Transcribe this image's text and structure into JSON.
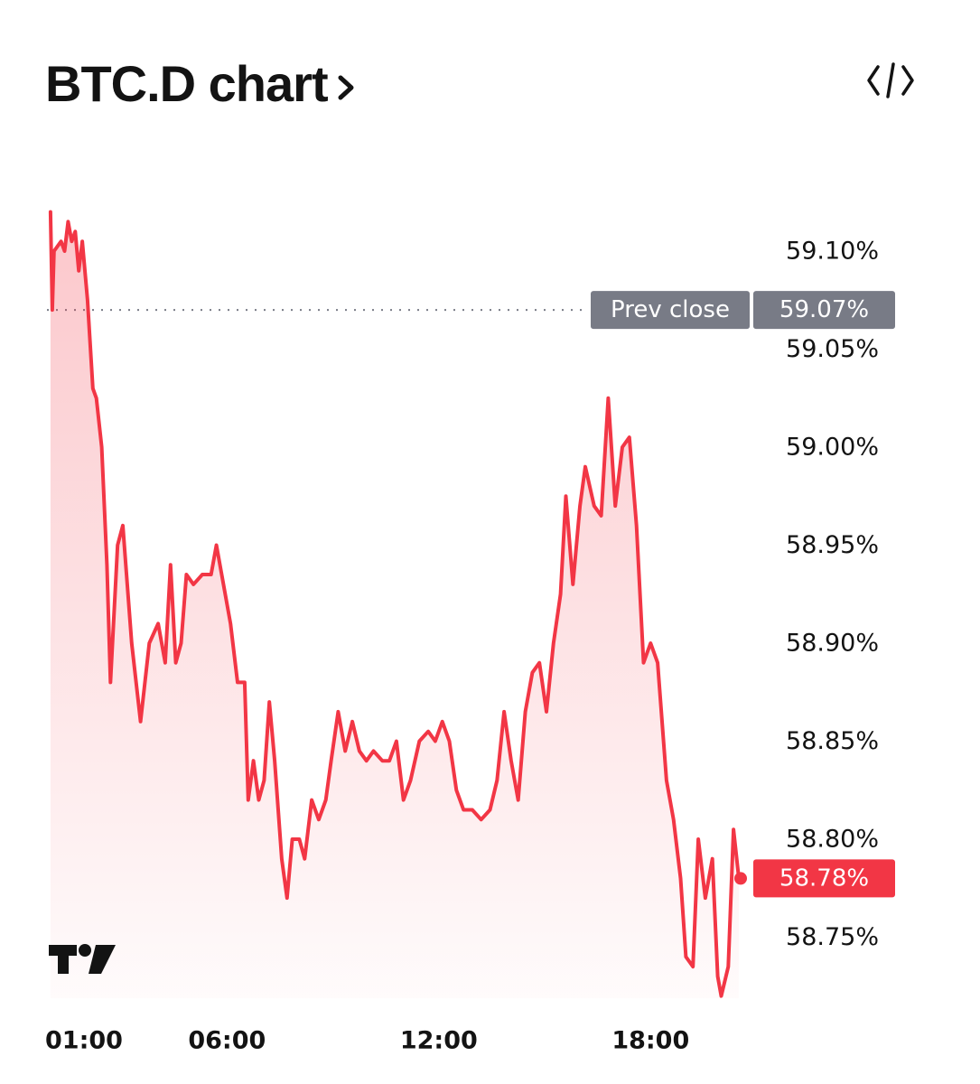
{
  "header": {
    "title": "BTC.D chart"
  },
  "colors": {
    "line": "#f23645",
    "tag_grey": "#787b86",
    "text": "#131313"
  },
  "chart_data": {
    "type": "area",
    "title": "BTC.D chart",
    "xlabel": "",
    "ylabel": "",
    "unit": "%",
    "x_ticks": [
      {
        "label": "01:00",
        "x": 1.0
      },
      {
        "label": "06:00",
        "x": 6.0
      },
      {
        "label": "12:00",
        "x": 12.0
      },
      {
        "label": "18:00",
        "x": 18.0
      }
    ],
    "y_ticks": [
      "58.75%",
      "58.80%",
      "58.85%",
      "58.90%",
      "58.95%",
      "59.00%",
      "59.05%",
      "59.10%"
    ],
    "y_tick_values": [
      58.75,
      58.8,
      58.85,
      58.9,
      58.95,
      59.0,
      59.05,
      59.1
    ],
    "ylim": [
      58.72,
      59.13
    ],
    "xlim": [
      0.9,
      20.2
    ],
    "prev_close": {
      "label": "Prev close",
      "value": 59.07,
      "value_label": "59.07%"
    },
    "last": {
      "value": 58.78,
      "value_label": "58.78%"
    },
    "series": [
      {
        "points": [
          [
            1.0,
            59.12
          ],
          [
            1.05,
            59.07
          ],
          [
            1.1,
            59.1
          ],
          [
            1.3,
            59.105
          ],
          [
            1.4,
            59.1
          ],
          [
            1.5,
            59.115
          ],
          [
            1.6,
            59.105
          ],
          [
            1.7,
            59.11
          ],
          [
            1.8,
            59.09
          ],
          [
            1.9,
            59.105
          ],
          [
            2.05,
            59.075
          ],
          [
            2.2,
            59.03
          ],
          [
            2.3,
            59.025
          ],
          [
            2.45,
            59.0
          ],
          [
            2.6,
            58.94
          ],
          [
            2.7,
            58.88
          ],
          [
            2.9,
            58.95
          ],
          [
            3.05,
            58.96
          ],
          [
            3.3,
            58.9
          ],
          [
            3.55,
            58.86
          ],
          [
            3.8,
            58.9
          ],
          [
            4.05,
            58.91
          ],
          [
            4.25,
            58.89
          ],
          [
            4.4,
            58.94
          ],
          [
            4.55,
            58.89
          ],
          [
            4.7,
            58.9
          ],
          [
            4.85,
            58.935
          ],
          [
            5.05,
            58.93
          ],
          [
            5.3,
            58.935
          ],
          [
            5.55,
            58.935
          ],
          [
            5.7,
            58.95
          ],
          [
            5.9,
            58.93
          ],
          [
            6.1,
            58.91
          ],
          [
            6.3,
            58.88
          ],
          [
            6.5,
            58.88
          ],
          [
            6.6,
            58.82
          ],
          [
            6.75,
            58.84
          ],
          [
            6.9,
            58.82
          ],
          [
            7.05,
            58.83
          ],
          [
            7.2,
            58.87
          ],
          [
            7.35,
            58.84
          ],
          [
            7.55,
            58.79
          ],
          [
            7.7,
            58.77
          ],
          [
            7.85,
            58.8
          ],
          [
            8.05,
            58.8
          ],
          [
            8.2,
            58.79
          ],
          [
            8.4,
            58.82
          ],
          [
            8.6,
            58.81
          ],
          [
            8.8,
            58.82
          ],
          [
            8.95,
            58.84
          ],
          [
            9.15,
            58.865
          ],
          [
            9.35,
            58.845
          ],
          [
            9.55,
            58.86
          ],
          [
            9.75,
            58.845
          ],
          [
            9.95,
            58.84
          ],
          [
            10.15,
            58.845
          ],
          [
            10.4,
            58.84
          ],
          [
            10.6,
            58.84
          ],
          [
            10.8,
            58.85
          ],
          [
            11.0,
            58.82
          ],
          [
            11.2,
            58.83
          ],
          [
            11.45,
            58.85
          ],
          [
            11.7,
            58.855
          ],
          [
            11.9,
            58.85
          ],
          [
            12.1,
            58.86
          ],
          [
            12.3,
            58.85
          ],
          [
            12.5,
            58.825
          ],
          [
            12.7,
            58.815
          ],
          [
            12.95,
            58.815
          ],
          [
            13.2,
            58.81
          ],
          [
            13.45,
            58.815
          ],
          [
            13.65,
            58.83
          ],
          [
            13.85,
            58.865
          ],
          [
            14.05,
            58.84
          ],
          [
            14.25,
            58.82
          ],
          [
            14.45,
            58.865
          ],
          [
            14.65,
            58.885
          ],
          [
            14.85,
            58.89
          ],
          [
            15.05,
            58.865
          ],
          [
            15.25,
            58.9
          ],
          [
            15.45,
            58.925
          ],
          [
            15.6,
            58.975
          ],
          [
            15.8,
            58.93
          ],
          [
            16.0,
            58.97
          ],
          [
            16.15,
            58.99
          ],
          [
            16.4,
            58.97
          ],
          [
            16.6,
            58.965
          ],
          [
            16.8,
            59.025
          ],
          [
            17.0,
            58.97
          ],
          [
            17.2,
            59.0
          ],
          [
            17.4,
            59.005
          ],
          [
            17.6,
            58.96
          ],
          [
            17.8,
            58.89
          ],
          [
            18.0,
            58.9
          ],
          [
            18.2,
            58.89
          ],
          [
            18.45,
            58.83
          ],
          [
            18.65,
            58.81
          ],
          [
            18.85,
            58.78
          ],
          [
            19.0,
            58.74
          ],
          [
            19.2,
            58.735
          ],
          [
            19.35,
            58.8
          ],
          [
            19.55,
            58.77
          ],
          [
            19.75,
            58.79
          ],
          [
            19.9,
            58.73
          ],
          [
            20.0,
            58.72
          ],
          [
            20.2,
            58.735
          ],
          [
            20.35,
            58.805
          ],
          [
            20.5,
            58.78
          ]
        ]
      }
    ]
  }
}
